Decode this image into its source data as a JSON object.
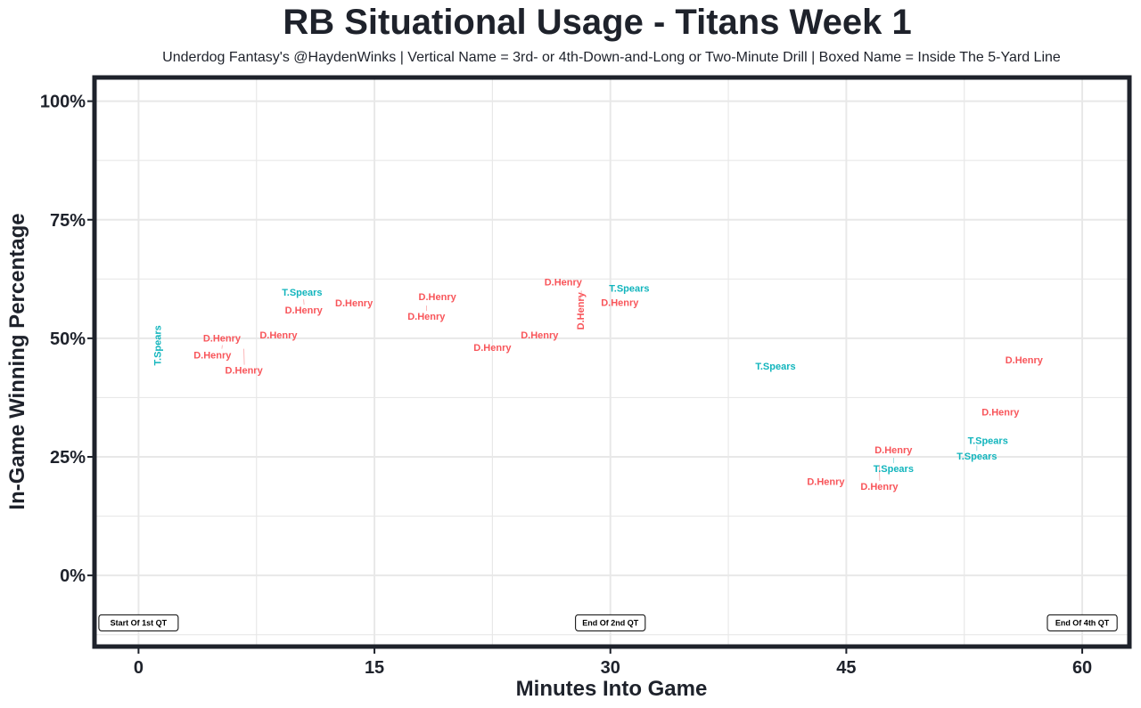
{
  "chart_data": {
    "type": "scatter",
    "title": "RB Situational Usage - Titans Week 1",
    "subtitle": "Underdog Fantasy's @HaydenWinks | Vertical Name = 3rd- or 4th-Down-and-Long or Two-Minute Drill | Boxed Name = Inside The 5-Yard Line",
    "xlabel": "Minutes Into Game",
    "ylabel": "In-Game Winning Percentage",
    "xlim": [
      -2.8,
      63
    ],
    "ylim": [
      -15,
      105
    ],
    "x_ticks": [
      0,
      15,
      30,
      45,
      60
    ],
    "x_tick_labels": [
      "0",
      "15",
      "30",
      "45",
      "60"
    ],
    "y_ticks": [
      0,
      25,
      50,
      75,
      100
    ],
    "y_tick_labels": [
      "0%",
      "25%",
      "50%",
      "75%",
      "100%"
    ],
    "grid": true,
    "colors": {
      "D.Henry": "#f8555a",
      "T.Spears": "#12b5bd",
      "border": "#1e222b",
      "grid": "#e8e8e8"
    },
    "points": [
      {
        "name": "T.Spears",
        "x": 1.2,
        "y": 48.5,
        "vertical": true,
        "boxed": false
      },
      {
        "name": "D.Henry",
        "x": 4.7,
        "y": 46.5,
        "vertical": false,
        "boxed": false
      },
      {
        "name": "D.Henry",
        "x": 5.3,
        "y": 47.8,
        "vertical": false,
        "boxed": false
      },
      {
        "name": "D.Henry",
        "x": 6.7,
        "y": 47.8,
        "vertical": false,
        "boxed": false
      },
      {
        "name": "D.Henry",
        "x": 8.9,
        "y": 50.7,
        "vertical": false,
        "boxed": false
      },
      {
        "name": "T.Spears",
        "x": 10.4,
        "y": 59.7,
        "vertical": false,
        "boxed": false
      },
      {
        "name": "D.Henry",
        "x": 10.5,
        "y": 58.2,
        "vertical": false,
        "boxed": false
      },
      {
        "name": "D.Henry",
        "x": 13.7,
        "y": 57.5,
        "vertical": false,
        "boxed": false
      },
      {
        "name": "D.Henry",
        "x": 19.0,
        "y": 58.8,
        "vertical": false,
        "boxed": false
      },
      {
        "name": "D.Henry",
        "x": 18.3,
        "y": 56.9,
        "vertical": false,
        "boxed": false
      },
      {
        "name": "D.Henry",
        "x": 22.5,
        "y": 48.1,
        "vertical": false,
        "boxed": false
      },
      {
        "name": "D.Henry",
        "x": 25.5,
        "y": 50.7,
        "vertical": false,
        "boxed": false
      },
      {
        "name": "D.Henry",
        "x": 27.0,
        "y": 61.9,
        "vertical": false,
        "boxed": false
      },
      {
        "name": "D.Henry",
        "x": 28.1,
        "y": 58.0,
        "vertical": true,
        "boxed": false
      },
      {
        "name": "T.Spears",
        "x": 31.2,
        "y": 60.6,
        "vertical": false,
        "boxed": false
      },
      {
        "name": "D.Henry",
        "x": 30.6,
        "y": 57.6,
        "vertical": false,
        "boxed": false
      },
      {
        "name": "T.Spears",
        "x": 40.5,
        "y": 44.2,
        "vertical": false,
        "boxed": false
      },
      {
        "name": "D.Henry",
        "x": 56.3,
        "y": 45.5,
        "vertical": false,
        "boxed": false
      },
      {
        "name": "D.Henry",
        "x": 54.8,
        "y": 34.5,
        "vertical": false,
        "boxed": false
      },
      {
        "name": "T.Spears",
        "x": 54.0,
        "y": 28.5,
        "vertical": false,
        "boxed": false
      },
      {
        "name": "T.Spears",
        "x": 53.3,
        "y": 27.4,
        "vertical": false,
        "boxed": false
      },
      {
        "name": "D.Henry",
        "x": 48.0,
        "y": 26.5,
        "vertical": false,
        "boxed": false
      },
      {
        "name": "T.Spears",
        "x": 48.0,
        "y": 24.8,
        "vertical": false,
        "boxed": false
      },
      {
        "name": "D.Henry",
        "x": 47.1,
        "y": 23.3,
        "vertical": false,
        "boxed": false
      },
      {
        "name": "D.Henry",
        "x": 43.7,
        "y": 19.8,
        "vertical": false,
        "boxed": false
      }
    ],
    "annotations": [
      {
        "text": "Start Of 1st QT",
        "x": 0,
        "y": -10
      },
      {
        "text": "End Of 2nd QT",
        "x": 30,
        "y": -10
      },
      {
        "text": "End Of 4th QT",
        "x": 60,
        "y": -10
      }
    ]
  }
}
